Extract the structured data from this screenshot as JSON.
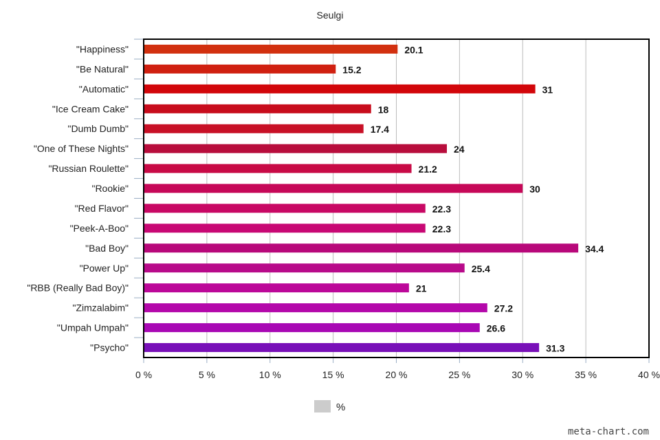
{
  "chart_data": {
    "type": "bar",
    "orientation": "horizontal",
    "title": "Seulgi",
    "categories": [
      "\"Happiness\"",
      "\"Be Natural\"",
      "\"Automatic\"",
      "\"Ice Cream Cake\"",
      "\"Dumb Dumb\"",
      "\"One of These Nights\"",
      "\"Russian Roulette\"",
      "\"Rookie\"",
      "\"Red Flavor\"",
      "\"Peek-A-Boo\"",
      "\"Bad Boy\"",
      "\"Power Up\"",
      "\"RBB (Really Bad Boy)\"",
      "\"Zimzalabim\"",
      "\"Umpah Umpah\"",
      "\"Psycho\""
    ],
    "series": [
      {
        "name": "%",
        "values": [
          20.1,
          15.2,
          31,
          18,
          17.4,
          24,
          21.2,
          30,
          22.3,
          22.3,
          34.4,
          25.4,
          21,
          27.2,
          26.6,
          31.3
        ],
        "data_labels": [
          "20.1",
          "15.2",
          "31",
          "18",
          "17.4",
          "24",
          "21.2",
          "30",
          "22.3",
          "22.3",
          "34.4",
          "25.4",
          "21",
          "27.2",
          "26.6",
          "31.3"
        ],
        "colors": [
          "#d2300f",
          "#d02010",
          "#d2060a",
          "#c80c1c",
          "#c81026",
          "#b80d3c",
          "#c80a46",
          "#c60858",
          "#c80864",
          "#c80874",
          "#b8087a",
          "#b80a8a",
          "#bc0899",
          "#b408aa",
          "#a808b4",
          "#7810b8"
        ]
      }
    ],
    "x_ticks": [
      0,
      5,
      10,
      15,
      20,
      25,
      30,
      35,
      40
    ],
    "x_tick_labels": [
      "0 %",
      "5 %",
      "10 %",
      "15 %",
      "20 %",
      "25 %",
      "30 %",
      "35 %",
      "40 %"
    ],
    "xlim": [
      0,
      40
    ],
    "grid": true,
    "legend": {
      "position": "bottom",
      "label": "%",
      "color": "#cccccc"
    }
  },
  "watermark": "meta-chart.com"
}
